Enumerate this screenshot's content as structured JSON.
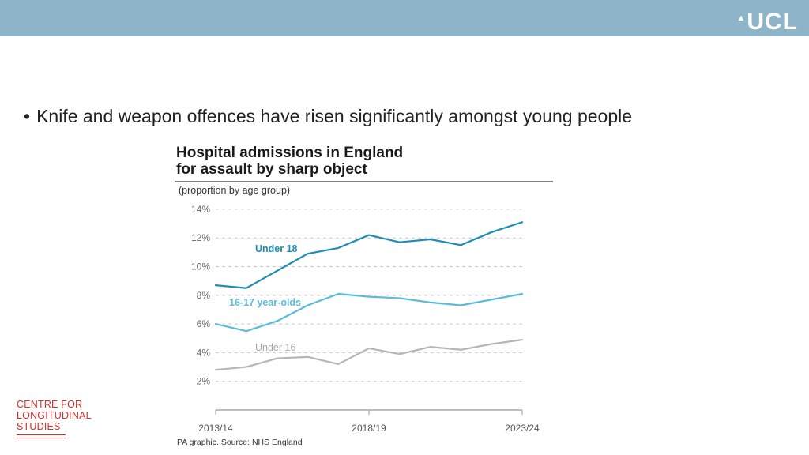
{
  "header": {
    "logo_text": "UCL",
    "logo_mark": "▲"
  },
  "slide": {
    "bullet": "Knife and weapon offences have risen significantly amongst young people"
  },
  "colors": {
    "band": "#8db4c9",
    "under18": "#1e8db5",
    "y1617": "#5bbbd9",
    "under16": "#b6b6b6",
    "brand_red": "#d0312d"
  },
  "chart_data": {
    "type": "line",
    "title_line1": "Hospital admissions in England",
    "title_line2": "for assault by sharp object",
    "subtitle": "(proportion by age group)",
    "source": "PA graphic. Source: NHS England",
    "x": [
      0,
      1,
      2,
      3,
      4,
      5,
      6,
      7,
      8,
      9,
      10
    ],
    "x_tick_labels": [
      {
        "at": 0,
        "label": "2013/14"
      },
      {
        "at": 5,
        "label": "2018/19"
      },
      {
        "at": 10,
        "label": "2023/24"
      }
    ],
    "y_ticks": [
      2,
      4,
      6,
      8,
      10,
      12,
      14
    ],
    "y_tick_labels": [
      "2%",
      "4%",
      "6%",
      "8%",
      "10%",
      "12%",
      "14%"
    ],
    "ylim": [
      0,
      14
    ],
    "grid": true,
    "series": [
      {
        "name": "Under 18",
        "color": "#1e8db5",
        "values": [
          8.7,
          8.5,
          9.7,
          10.9,
          11.3,
          12.2,
          11.7,
          11.9,
          11.5,
          12.4,
          13.1
        ]
      },
      {
        "name": "16-17 year-olds",
        "color": "#5bbbd9",
        "values": [
          6.0,
          5.5,
          6.2,
          7.3,
          8.1,
          7.9,
          7.8,
          7.5,
          7.3,
          7.7,
          8.1
        ]
      },
      {
        "name": "Under 16",
        "color": "#b6b6b6",
        "values": [
          2.8,
          3.0,
          3.6,
          3.7,
          3.2,
          4.3,
          3.9,
          4.4,
          4.2,
          4.6,
          4.9
        ]
      }
    ]
  },
  "footer_logo": {
    "line1": "CENTRE FOR",
    "line2": "LONGITUDINAL",
    "line3": "STUDIES"
  }
}
